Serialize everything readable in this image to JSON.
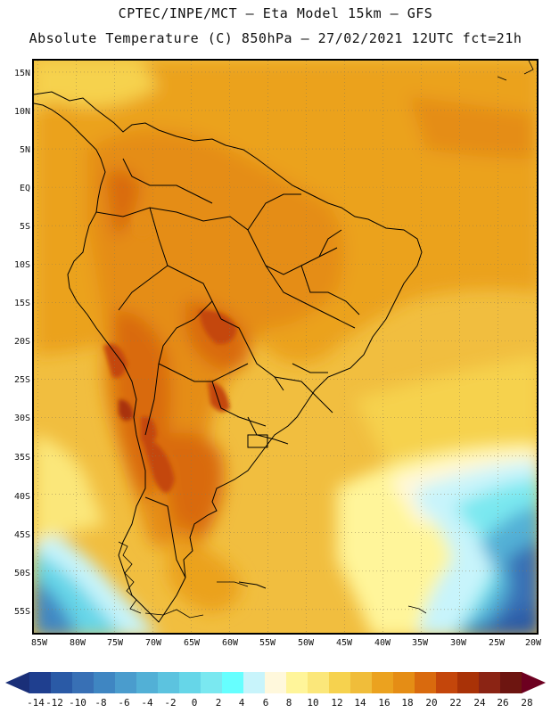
{
  "header": {
    "title_line1": "CPTEC/INPE/MCT –  Eta Model 15km – GFS",
    "title_line2": "Absolute Temperature (C) 850hPa – 27/02/2021 12UTC fct=21h"
  },
  "map": {
    "lat_labels": [
      "15N",
      "10N",
      "5N",
      "EQ",
      "5S",
      "10S",
      "15S",
      "20S",
      "25S",
      "30S",
      "35S",
      "40S",
      "45S",
      "50S",
      "55S"
    ],
    "lon_labels": [
      "85W",
      "80W",
      "75W",
      "70W",
      "65W",
      "60W",
      "55W",
      "50W",
      "45W",
      "40W",
      "35W",
      "30W",
      "25W",
      "20W"
    ],
    "lat_range": [
      16.5,
      -58.5
    ],
    "lon_range": [
      -85.5,
      -19.5
    ]
  },
  "colorbar": {
    "labels": [
      "-14",
      "-12",
      "-10",
      "-8",
      "-6",
      "-4",
      "-2",
      "0",
      "2",
      "4",
      "6",
      "8",
      "10",
      "12",
      "14",
      "16",
      "18",
      "20",
      "22",
      "24",
      "26",
      "28"
    ],
    "colors": [
      "#1f3f8f",
      "#2a5aa6",
      "#3870b5",
      "#3f86c2",
      "#4a9ccd",
      "#52b0d6",
      "#5cc3df",
      "#66d6e8",
      "#7ae8f0",
      "#66ffff",
      "#c8f4fb",
      "#fff8dc",
      "#fff59a",
      "#fbe77a",
      "#f6d24e",
      "#f0bd3a",
      "#eba21f",
      "#e58d15",
      "#d96a0e",
      "#c4460b",
      "#a93207",
      "#8b2414",
      "#6d1510"
    ],
    "left_arrow_color": "#1a2f78",
    "right_arrow_color": "#6d0020"
  },
  "palette": {
    "frame": "#000000",
    "grid": "#8a7a55"
  }
}
